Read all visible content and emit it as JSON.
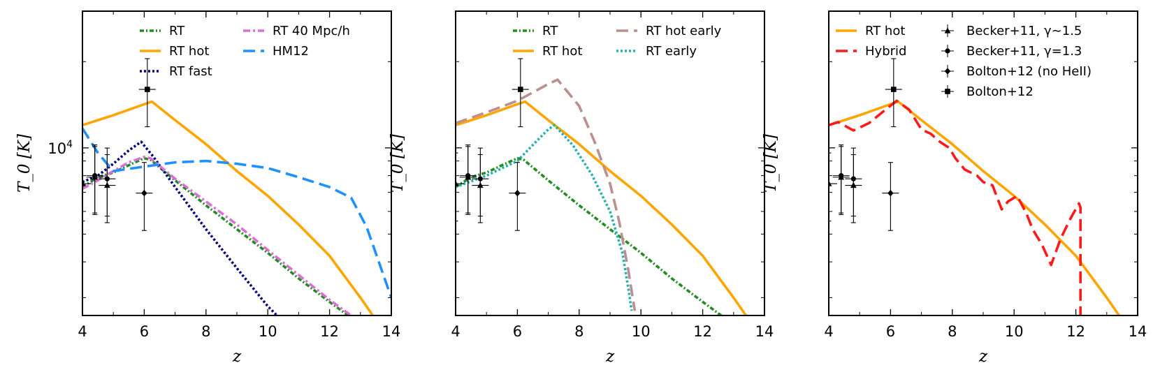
{
  "chart_data": [
    {
      "type": "line",
      "title": "",
      "xlabel": "z",
      "ylabel": "T_0 [K]",
      "xlim": [
        4,
        14
      ],
      "ylim": [
        2600,
        30000
      ],
      "yscale": "log",
      "x_ticks": [
        "4",
        "6",
        "8",
        "10",
        "12",
        "14"
      ],
      "y_tick_major": {
        "value": 10000,
        "base": "10",
        "exp": "4"
      },
      "legend": {
        "placement": "top-right",
        "columns": 2
      },
      "series": [
        {
          "name": "RT",
          "color": "#228b22",
          "dash": "dash-dot-dense",
          "x": [
            4.0,
            4.5,
            5.0,
            5.5,
            6.0,
            6.2,
            7.0,
            8.0,
            9.0,
            10.0,
            11.0,
            12.0,
            12.6
          ],
          "y": [
            7300,
            7900,
            8200,
            8700,
            9200,
            9100,
            7700,
            6300,
            5200,
            4300,
            3500,
            2900,
            2600
          ]
        },
        {
          "name": "RT hot",
          "color": "#ffa500",
          "dash": "solid",
          "x": [
            4.0,
            5.0,
            6.0,
            6.25,
            7.0,
            8.0,
            9.0,
            10.0,
            11.0,
            12.0,
            13.0,
            13.4
          ],
          "y": [
            12000,
            13000,
            14200,
            14500,
            12500,
            10300,
            8300,
            6800,
            5400,
            4200,
            3000,
            2600
          ]
        },
        {
          "name": "RT fast",
          "color": "#000080",
          "dash": "dotted",
          "x": [
            4.0,
            4.5,
            5.0,
            5.5,
            5.9,
            6.3,
            7.0,
            8.0,
            9.0,
            10.0,
            10.3
          ],
          "y": [
            7600,
            8000,
            8800,
            9800,
            10500,
            9300,
            7300,
            5200,
            3800,
            2800,
            2600
          ]
        },
        {
          "name": "RT 40 Mpc/h",
          "color": "#da70d6",
          "dash": "dash-dot",
          "x": [
            4.0,
            4.5,
            5.0,
            5.5,
            6.0,
            6.2,
            7.0,
            8.0,
            9.0,
            10.0,
            11.0,
            12.0,
            12.7
          ],
          "y": [
            7200,
            7700,
            8300,
            8900,
            9300,
            9200,
            7800,
            6500,
            5400,
            4400,
            3600,
            2950,
            2600
          ]
        },
        {
          "name": "HM12",
          "color": "#1e90ff",
          "dash": "dashed",
          "x": [
            4.0,
            4.5,
            5.0,
            6.0,
            7.0,
            8.0,
            9.0,
            10.0,
            11.0,
            12.0,
            12.7,
            13.2,
            14.0
          ],
          "y": [
            11700,
            9600,
            8300,
            8600,
            8900,
            9000,
            8800,
            8500,
            7900,
            7300,
            6700,
            5300,
            3000
          ]
        }
      ],
      "observations": [
        {
          "name": "Becker+11, γ∼1.5",
          "marker": "triangle",
          "x": [
            4.0,
            4.4,
            4.8
          ],
          "y": [
            7500,
            7900,
            7400
          ]
        },
        {
          "name": "Becker+11, γ=1.3",
          "marker": "circle",
          "x": [
            4.4,
            4.8
          ],
          "y": [
            8000,
            7800
          ]
        },
        {
          "name": "Bolton+12 (no HeII)",
          "marker": "diamond",
          "x": [
            6.0
          ],
          "y": [
            6950
          ]
        },
        {
          "name": "Bolton+12",
          "marker": "square",
          "x": [
            6.1
          ],
          "y": [
            16000
          ]
        }
      ]
    },
    {
      "type": "line",
      "title": "",
      "xlabel": "z",
      "ylabel": "T_0 [K]",
      "xlim": [
        4,
        14
      ],
      "ylim": [
        2600,
        30000
      ],
      "yscale": "log",
      "x_ticks": [
        "4",
        "6",
        "8",
        "10",
        "12",
        "14"
      ],
      "legend": {
        "placement": "top-right",
        "columns": 2
      },
      "series": [
        {
          "name": "RT",
          "color": "#228b22",
          "dash": "dash-dot-dense",
          "x": [
            4.0,
            4.5,
            5.0,
            5.5,
            6.0,
            6.2,
            7.0,
            8.0,
            9.0,
            10.0,
            11.0,
            12.0,
            12.6
          ],
          "y": [
            7300,
            7900,
            8200,
            8700,
            9200,
            9100,
            7700,
            6300,
            5200,
            4300,
            3500,
            2900,
            2600
          ]
        },
        {
          "name": "RT hot",
          "color": "#ffa500",
          "dash": "solid",
          "x": [
            4.0,
            5.0,
            6.0,
            6.25,
            7.0,
            8.0,
            9.0,
            10.0,
            11.0,
            12.0,
            13.0,
            13.4
          ],
          "y": [
            12000,
            13000,
            14200,
            14500,
            12500,
            10300,
            8300,
            6800,
            5400,
            4200,
            3000,
            2600
          ]
        },
        {
          "name": "RT hot early",
          "color": "#bc8f8f",
          "dash": "dashed",
          "x": [
            4.0,
            5.0,
            6.0,
            7.0,
            7.3,
            8.0,
            8.5,
            9.0,
            9.3,
            9.6,
            9.8
          ],
          "y": [
            12200,
            13300,
            14600,
            16700,
            17300,
            14000,
            10500,
            7500,
            5500,
            3700,
            2700
          ]
        },
        {
          "name": "RT early",
          "color": "#20b2aa",
          "dash": "dotted",
          "x": [
            4.0,
            5.0,
            6.0,
            6.6,
            7.0,
            7.2,
            7.8,
            8.4,
            9.0,
            9.4,
            9.6,
            9.7
          ],
          "y": [
            7300,
            8000,
            9000,
            10500,
            11600,
            12000,
            10200,
            8100,
            6000,
            4300,
            3200,
            2700
          ]
        }
      ],
      "observations": [
        {
          "name": "Becker+11, γ∼1.5",
          "marker": "triangle",
          "x": [
            4.0,
            4.4,
            4.8
          ],
          "y": [
            7500,
            7900,
            7400
          ]
        },
        {
          "name": "Becker+11, γ=1.3",
          "marker": "circle",
          "x": [
            4.4,
            4.8
          ],
          "y": [
            8000,
            7800
          ]
        },
        {
          "name": "Bolton+12 (no HeII)",
          "marker": "diamond",
          "x": [
            6.0
          ],
          "y": [
            6950
          ]
        },
        {
          "name": "Bolton+12",
          "marker": "square",
          "x": [
            6.1
          ],
          "y": [
            16000
          ]
        }
      ]
    },
    {
      "type": "line",
      "title": "",
      "xlabel": "z",
      "ylabel": "T_0 [K]",
      "xlim": [
        4,
        14
      ],
      "ylim": [
        2600,
        30000
      ],
      "yscale": "log",
      "x_ticks": [
        "4",
        "6",
        "8",
        "10",
        "12",
        "14"
      ],
      "legend": {
        "placement": "top-right",
        "columns": 2
      },
      "series": [
        {
          "name": "RT hot",
          "color": "#ffa500",
          "dash": "solid",
          "x": [
            4.0,
            5.0,
            6.0,
            6.25,
            7.0,
            8.0,
            9.0,
            10.0,
            11.0,
            12.0,
            13.0,
            13.4
          ],
          "y": [
            12000,
            13000,
            14200,
            14500,
            12500,
            10300,
            8300,
            6800,
            5400,
            4200,
            3000,
            2600
          ]
        },
        {
          "name": "Hybrid",
          "color": "#ff1a1a",
          "dash": "dashed",
          "x": [
            4.0,
            4.3,
            4.8,
            5.3,
            5.8,
            6.2,
            6.6,
            7.0,
            7.3,
            7.6,
            7.9,
            8.1,
            8.4,
            8.8,
            9.0,
            9.3,
            9.6,
            9.8,
            10.1,
            10.4,
            10.6,
            10.9,
            11.2,
            11.5,
            11.8,
            12.1,
            12.15,
            12.15
          ],
          "y": [
            12000,
            12300,
            11500,
            12200,
            13500,
            14600,
            13600,
            11600,
            11200,
            10500,
            10000,
            9200,
            8400,
            8000,
            7600,
            7400,
            6100,
            6500,
            6800,
            5900,
            5200,
            4600,
            3900,
            4800,
            5600,
            6400,
            6200,
            2600
          ]
        }
      ],
      "observations": [
        {
          "name": "Becker+11, γ∼1.5",
          "marker": "triangle",
          "x": [
            4.0,
            4.4,
            4.8
          ],
          "y": [
            7500,
            7900,
            7400
          ]
        },
        {
          "name": "Becker+11, γ=1.3",
          "marker": "circle",
          "x": [
            4.4,
            4.8
          ],
          "y": [
            8000,
            7800
          ]
        },
        {
          "name": "Bolton+12 (no HeII)",
          "marker": "diamond",
          "x": [
            6.0
          ],
          "y": [
            6950
          ]
        },
        {
          "name": "Bolton+12",
          "marker": "square",
          "x": [
            6.1
          ],
          "y": [
            16000
          ]
        }
      ],
      "legend_entries": [
        {
          "kind": "line",
          "label": "RT hot",
          "color": "#ffa500",
          "dash": "solid"
        },
        {
          "kind": "line",
          "label": "Hybrid",
          "color": "#ff1a1a",
          "dash": "dashed"
        },
        {
          "kind": "marker",
          "label": "Becker+11, γ∼1.5",
          "marker": "triangle"
        },
        {
          "kind": "marker",
          "label": "Becker+11, γ=1.3",
          "marker": "circle"
        },
        {
          "kind": "marker",
          "label": "Bolton+12 (no HeII)",
          "marker": "diamond"
        },
        {
          "kind": "marker",
          "label": "Bolton+12",
          "marker": "square"
        }
      ]
    }
  ]
}
